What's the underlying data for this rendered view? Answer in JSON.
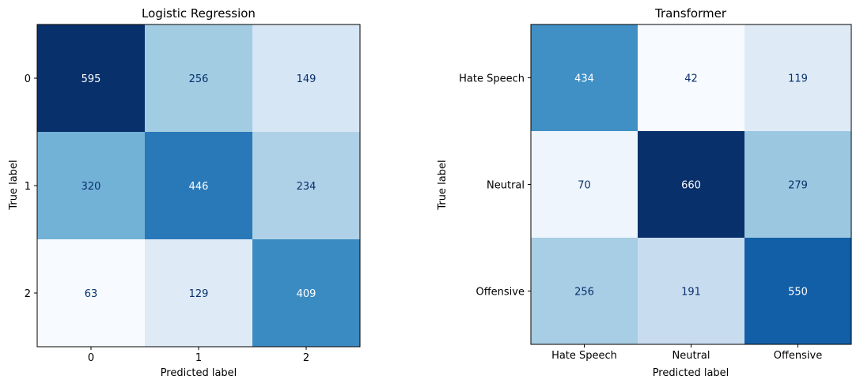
{
  "chart_data": [
    {
      "type": "heatmap",
      "title": "Logistic Regression",
      "xlabel": "Predicted label",
      "ylabel": "True label",
      "x_ticks": [
        "0",
        "1",
        "2"
      ],
      "y_ticks": [
        "0",
        "1",
        "2"
      ],
      "colormap": "Blues",
      "values": [
        [
          595,
          256,
          149
        ],
        [
          320,
          446,
          234
        ],
        [
          63,
          129,
          409
        ]
      ]
    },
    {
      "type": "heatmap",
      "title": "Transformer",
      "xlabel": "Predicted label",
      "ylabel": "True label",
      "x_ticks": [
        "Hate Speech",
        "Neutral",
        "Offensive"
      ],
      "y_ticks": [
        "Hate Speech",
        "Neutral",
        "Offensive"
      ],
      "colormap": "Blues",
      "values": [
        [
          434,
          42,
          119
        ],
        [
          70,
          660,
          279
        ],
        [
          256,
          191,
          550
        ]
      ]
    }
  ]
}
